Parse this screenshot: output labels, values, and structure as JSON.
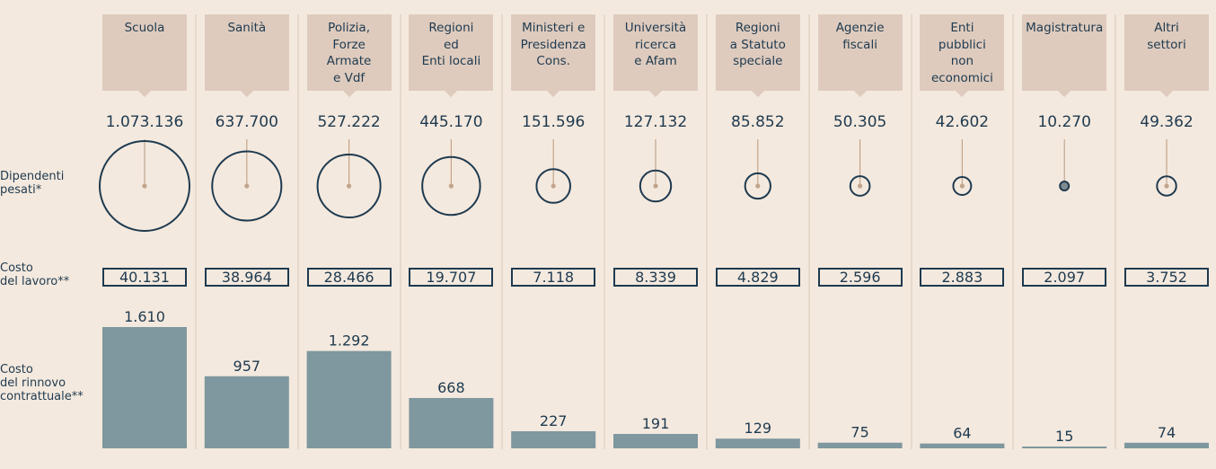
{
  "row_labels": {
    "dipendenti": "Dipendenti\npesati*",
    "costo_lavoro": "Costo\ndel lavoro**",
    "costo_rinnovo": "Costo\ndel rinnovo\ncontrattuale**"
  },
  "colors": {
    "background": "#f4e9de",
    "header_bg": "#decbbd",
    "divider": "#e6d9cb",
    "bar": "#7f979e",
    "text": "#1e3a50",
    "dot": "#c2a48c",
    "small_dot_fill": "#7f8a8e"
  },
  "chart_data": {
    "type": "bar",
    "categories": [
      "Scuola",
      "Sanità",
      "Polizia,\nForze\nArmate\ne Vdf",
      "Regioni\ned\nEnti locali",
      "Ministeri e\nPresidenza\nCons.",
      "Università\nricerca\ne Afam",
      "Regioni\na Statuto\nspeciale",
      "Agenzie\nfiscali",
      "Enti\npubblici\nnon\neconomici",
      "Magistratura",
      "Altri\nsettori"
    ],
    "dipendenti_pesati": [
      1073136,
      637700,
      527222,
      445170,
      151596,
      127132,
      85852,
      50305,
      42602,
      10270,
      49362
    ],
    "dipendenti_labels": [
      "1.073.136",
      "637.700",
      "527.222",
      "445.170",
      "151.596",
      "127.132",
      "85.852",
      "50.305",
      "42.602",
      "10.270",
      "49.362"
    ],
    "costo_lavoro": [
      40131,
      38964,
      28466,
      19707,
      7118,
      8339,
      4829,
      2596,
      2883,
      2097,
      3752
    ],
    "costo_lavoro_labels": [
      "40.131",
      "38.964",
      "28.466",
      "19.707",
      "7.118",
      "8.339",
      "4.829",
      "2.596",
      "2.883",
      "2.097",
      "3.752"
    ],
    "series": [
      {
        "values": [
          1610,
          957,
          1292,
          668,
          227,
          191,
          129,
          75,
          64,
          15,
          74
        ],
        "labels": [
          "1.610",
          "957",
          "1.292",
          "668",
          "227",
          "191",
          "129",
          "75",
          "64",
          "15",
          "74"
        ]
      }
    ]
  }
}
